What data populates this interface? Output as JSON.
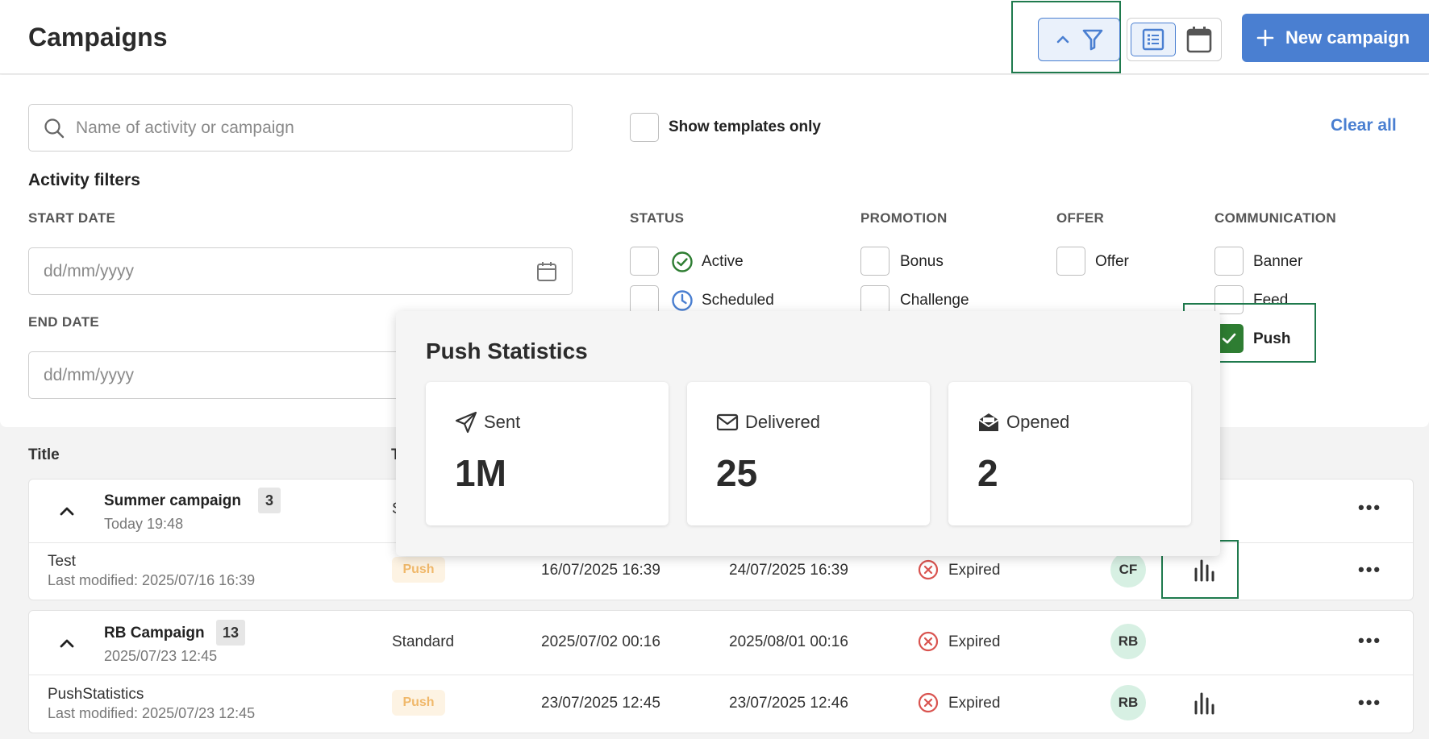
{
  "header": {
    "title": "Campaigns",
    "new_campaign_label": "New campaign"
  },
  "filters": {
    "search_placeholder": "Name of activity or campaign",
    "show_templates_label": "Show templates only",
    "clear_all_label": "Clear all",
    "activity_filters_title": "Activity filters",
    "start_date_label": "START DATE",
    "end_date_label": "END DATE",
    "date_placeholder": "dd/mm/yyyy",
    "status": {
      "heading": "STATUS",
      "items": [
        "Active",
        "Scheduled"
      ]
    },
    "promotion": {
      "heading": "PROMOTION",
      "items": [
        "Bonus",
        "Challenge"
      ]
    },
    "offer": {
      "heading": "OFFER",
      "items": [
        "Offer"
      ]
    },
    "communication": {
      "heading": "COMMUNICATION",
      "items": [
        "Banner",
        "Feed",
        "Push"
      ],
      "checked": [
        "Push"
      ]
    }
  },
  "table": {
    "col_title": "Title",
    "col_type_fragment": "T",
    "rows": [
      {
        "campaign": "Summer campaign",
        "count": "3",
        "date": "Today 19:48",
        "type_fragment": "S",
        "activities": [
          {
            "name": "Test",
            "modified": "Last modified: 2025/07/16 16:39",
            "badge": "Push",
            "start": "16/07/2025 16:39",
            "end": "24/07/2025 16:39",
            "status": "Expired",
            "avatar": "CF"
          }
        ]
      },
      {
        "campaign": "RB Campaign",
        "count": "13",
        "date": "2025/07/23 12:45",
        "type": "Standard",
        "start": "2025/07/02 00:16",
        "end": "2025/08/01 00:16",
        "status": "Expired",
        "avatar": "RB",
        "activities": [
          {
            "name": "PushStatistics",
            "modified": "Last modified: 2025/07/23 12:45",
            "badge": "Push",
            "start": "23/07/2025 12:45",
            "end": "23/07/2025 12:46",
            "status": "Expired",
            "avatar": "RB"
          }
        ]
      }
    ]
  },
  "popover": {
    "title": "Push Statistics",
    "stats": [
      {
        "label": "Sent",
        "value": "1M",
        "icon": "send-icon"
      },
      {
        "label": "Delivered",
        "value": "25",
        "icon": "mail-icon"
      },
      {
        "label": "Opened",
        "value": "2",
        "icon": "mail-open-icon"
      }
    ]
  },
  "colors": {
    "accent": "#4a7fd1",
    "highlight": "#1f7a4d",
    "checked": "#2e7d32",
    "push_badge": "#f0b86a",
    "expired": "#d9534f"
  }
}
